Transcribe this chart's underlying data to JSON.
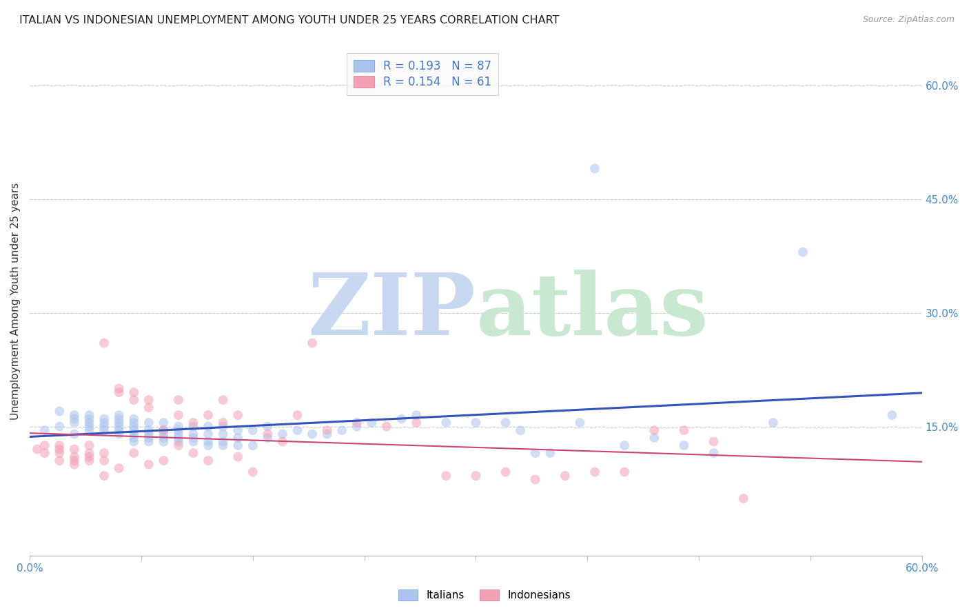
{
  "title": "ITALIAN VS INDONESIAN UNEMPLOYMENT AMONG YOUTH UNDER 25 YEARS CORRELATION CHART",
  "source": "Source: ZipAtlas.com",
  "ylabel": "Unemployment Among Youth under 25 years",
  "xlim": [
    0.0,
    0.6
  ],
  "ylim": [
    -0.02,
    0.65
  ],
  "xtick_positions": [
    0.0,
    0.075,
    0.15,
    0.225,
    0.3,
    0.375,
    0.45,
    0.525,
    0.6
  ],
  "xticklabels_shown": {
    "0.0": "0.0%",
    "0.60": "60.0%"
  },
  "ytick_positions": [
    0.15,
    0.3,
    0.45,
    0.6
  ],
  "ytick_labels": [
    "15.0%",
    "30.0%",
    "45.0%",
    "60.0%"
  ],
  "grid_color": "#cccccc",
  "background_color": "#ffffff",
  "italian_color": "#aac4ee",
  "indonesian_color": "#f4a0b4",
  "italian_line_color": "#3355bb",
  "indonesian_line_color": "#cc4477",
  "watermark_zip_color": "#c8d8f0",
  "watermark_atlas_color": "#c8e8d0",
  "legend_R_color": "#4477cc",
  "legend_N_color": "#4477cc",
  "legend_label_color": "#444444",
  "legend_italian_R": "0.193",
  "legend_italian_N": "87",
  "legend_indonesian_R": "0.154",
  "legend_indonesian_N": "61",
  "marker_size": 100,
  "marker_alpha": 0.55,
  "title_fontsize": 11.5,
  "axis_label_fontsize": 11,
  "tick_fontsize": 11,
  "tick_color": "#4488cc",
  "ytick_color": "#4488cc",
  "italian_x": [
    0.01,
    0.02,
    0.02,
    0.03,
    0.03,
    0.03,
    0.03,
    0.04,
    0.04,
    0.04,
    0.04,
    0.04,
    0.05,
    0.05,
    0.05,
    0.05,
    0.06,
    0.06,
    0.06,
    0.06,
    0.06,
    0.06,
    0.07,
    0.07,
    0.07,
    0.07,
    0.07,
    0.07,
    0.07,
    0.08,
    0.08,
    0.08,
    0.08,
    0.08,
    0.09,
    0.09,
    0.09,
    0.09,
    0.09,
    0.1,
    0.1,
    0.1,
    0.1,
    0.1,
    0.11,
    0.11,
    0.11,
    0.11,
    0.12,
    0.12,
    0.12,
    0.12,
    0.13,
    0.13,
    0.13,
    0.13,
    0.14,
    0.14,
    0.14,
    0.15,
    0.15,
    0.16,
    0.16,
    0.17,
    0.18,
    0.19,
    0.2,
    0.21,
    0.22,
    0.23,
    0.25,
    0.26,
    0.28,
    0.3,
    0.32,
    0.33,
    0.34,
    0.35,
    0.37,
    0.38,
    0.4,
    0.42,
    0.44,
    0.46,
    0.5,
    0.52,
    0.58
  ],
  "italian_y": [
    0.145,
    0.17,
    0.15,
    0.155,
    0.14,
    0.16,
    0.165,
    0.15,
    0.145,
    0.155,
    0.16,
    0.165,
    0.145,
    0.15,
    0.155,
    0.16,
    0.14,
    0.145,
    0.15,
    0.155,
    0.16,
    0.165,
    0.13,
    0.135,
    0.14,
    0.145,
    0.15,
    0.155,
    0.16,
    0.13,
    0.135,
    0.14,
    0.145,
    0.155,
    0.13,
    0.135,
    0.14,
    0.145,
    0.155,
    0.13,
    0.135,
    0.14,
    0.145,
    0.15,
    0.13,
    0.135,
    0.14,
    0.15,
    0.125,
    0.13,
    0.14,
    0.15,
    0.125,
    0.13,
    0.14,
    0.15,
    0.125,
    0.135,
    0.145,
    0.125,
    0.145,
    0.135,
    0.15,
    0.14,
    0.145,
    0.14,
    0.14,
    0.145,
    0.15,
    0.155,
    0.16,
    0.165,
    0.155,
    0.155,
    0.155,
    0.145,
    0.115,
    0.115,
    0.155,
    0.49,
    0.125,
    0.135,
    0.125,
    0.115,
    0.155,
    0.38,
    0.165
  ],
  "indonesian_x": [
    0.005,
    0.01,
    0.01,
    0.02,
    0.02,
    0.02,
    0.02,
    0.03,
    0.03,
    0.03,
    0.03,
    0.04,
    0.04,
    0.04,
    0.04,
    0.05,
    0.05,
    0.05,
    0.05,
    0.06,
    0.06,
    0.06,
    0.07,
    0.07,
    0.07,
    0.08,
    0.08,
    0.08,
    0.09,
    0.09,
    0.1,
    0.1,
    0.1,
    0.11,
    0.11,
    0.12,
    0.12,
    0.13,
    0.13,
    0.14,
    0.14,
    0.15,
    0.16,
    0.17,
    0.18,
    0.19,
    0.2,
    0.22,
    0.24,
    0.26,
    0.28,
    0.3,
    0.32,
    0.34,
    0.36,
    0.38,
    0.4,
    0.42,
    0.44,
    0.46,
    0.48
  ],
  "indonesian_y": [
    0.12,
    0.125,
    0.115,
    0.115,
    0.12,
    0.105,
    0.125,
    0.1,
    0.105,
    0.11,
    0.12,
    0.105,
    0.11,
    0.115,
    0.125,
    0.26,
    0.105,
    0.115,
    0.085,
    0.195,
    0.2,
    0.095,
    0.195,
    0.185,
    0.115,
    0.175,
    0.1,
    0.185,
    0.105,
    0.145,
    0.165,
    0.125,
    0.185,
    0.155,
    0.115,
    0.165,
    0.105,
    0.155,
    0.185,
    0.165,
    0.11,
    0.09,
    0.14,
    0.13,
    0.165,
    0.26,
    0.145,
    0.155,
    0.15,
    0.155,
    0.085,
    0.085,
    0.09,
    0.08,
    0.085,
    0.09,
    0.09,
    0.145,
    0.145,
    0.13,
    0.055
  ]
}
